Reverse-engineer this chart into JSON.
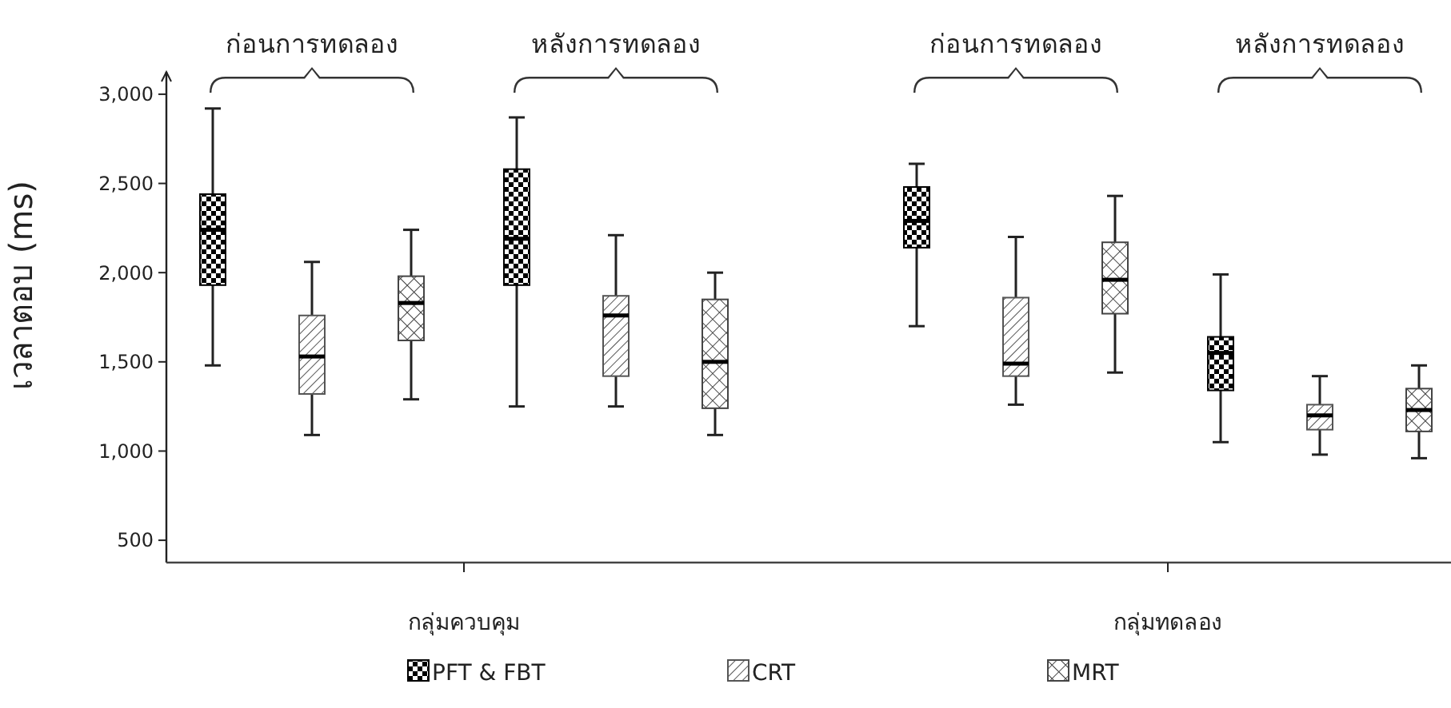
{
  "chart_data": {
    "type": "box",
    "ylabel": "เวลาตอบ (ms)",
    "categories": [
      "ก่อนการทดลอง",
      "หลังการทดลอง",
      "ก่อนการทดลอง",
      "หลังการทดลอง"
    ],
    "annotations": [
      "กลุ่มควบคุม",
      "กลุ่มทดลอง"
    ],
    "ylim": [
      375,
      3125
    ],
    "yticks": [
      {
        "value": 500,
        "label": "500"
      },
      {
        "value": 1000,
        "label": "1,000"
      },
      {
        "value": 1500,
        "label": "1,500"
      },
      {
        "value": 2000,
        "label": "2,000"
      },
      {
        "value": 2500,
        "label": "2,500"
      },
      {
        "value": 3000,
        "label": "3,000"
      }
    ],
    "grid": false,
    "legend": "bottom",
    "series": [
      {
        "name": "PFT & FBT",
        "color": "#000000",
        "boxes": [
          {
            "low": 1480,
            "q1": 1930,
            "median": 2240,
            "q3": 2440,
            "high": 2920
          },
          {
            "low": 1250,
            "q1": 1930,
            "median": 2190,
            "q3": 2580,
            "high": 2870
          },
          {
            "low": 1700,
            "q1": 2140,
            "median": 2290,
            "q3": 2480,
            "high": 2610
          },
          {
            "low": 1050,
            "q1": 1340,
            "median": 1550,
            "q3": 1640,
            "high": 1990
          }
        ]
      },
      {
        "name": "CRT",
        "color": "#555555",
        "boxes": [
          {
            "low": 1090,
            "q1": 1320,
            "median": 1530,
            "q3": 1760,
            "high": 2060
          },
          {
            "low": 1250,
            "q1": 1420,
            "median": 1760,
            "q3": 1870,
            "high": 2210
          },
          {
            "low": 1260,
            "q1": 1420,
            "median": 1490,
            "q3": 1860,
            "high": 2200
          },
          {
            "low": 980,
            "q1": 1120,
            "median": 1200,
            "q3": 1260,
            "high": 1420
          }
        ]
      },
      {
        "name": "MRT",
        "color": "#444444",
        "boxes": [
          {
            "low": 1290,
            "q1": 1620,
            "median": 1830,
            "q3": 1980,
            "high": 2240
          },
          {
            "low": 1090,
            "q1": 1240,
            "median": 1500,
            "q3": 1850,
            "high": 2000
          },
          {
            "low": 1440,
            "q1": 1770,
            "median": 1960,
            "q3": 2170,
            "high": 2430
          },
          {
            "low": 960,
            "q1": 1110,
            "median": 1230,
            "q3": 1350,
            "high": 1480
          }
        ]
      }
    ]
  }
}
